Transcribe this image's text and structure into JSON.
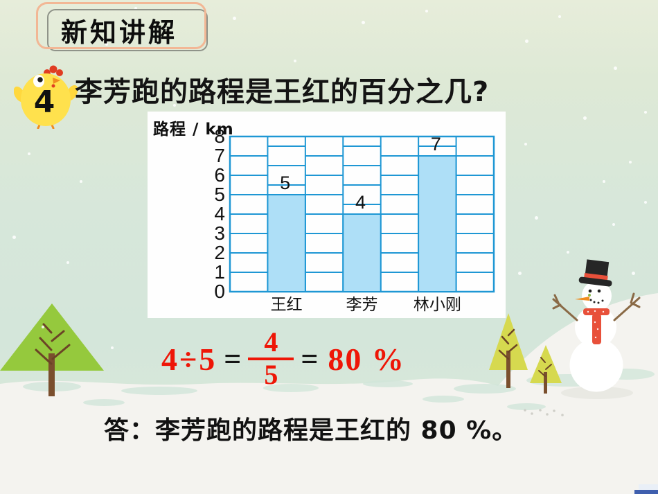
{
  "header": {
    "badge_label": "新知讲解"
  },
  "problem": {
    "number": "4",
    "question": "李芳跑的路程是王红的百分之几?"
  },
  "chart_data": {
    "type": "bar",
    "title": "",
    "ylabel": "路程 / km",
    "xlabel": "",
    "categories": [
      "王红",
      "李芳",
      "林小刚"
    ],
    "values": [
      5,
      4,
      7
    ],
    "ylim": [
      0,
      8
    ],
    "ytick_step": 1,
    "grid_on": true,
    "grid_columns": 7,
    "bar_columns": [
      1,
      3,
      5
    ],
    "legend": "none"
  },
  "solution": {
    "lhs": "4÷5",
    "equals1": "=",
    "fraction": {
      "numerator": "4",
      "denominator": "5"
    },
    "equals2": "=",
    "result": "80 %"
  },
  "answer_text": "答：李芳跑的路程是王红的 80 %。",
  "colors": {
    "grid_line": "#1e97d4",
    "bar_fill": "#aedff7",
    "equation_red": "#ee1607",
    "badge_border_orange": "#f2b795",
    "badge_border_gray": "#8f9389",
    "text_black": "#121212"
  }
}
